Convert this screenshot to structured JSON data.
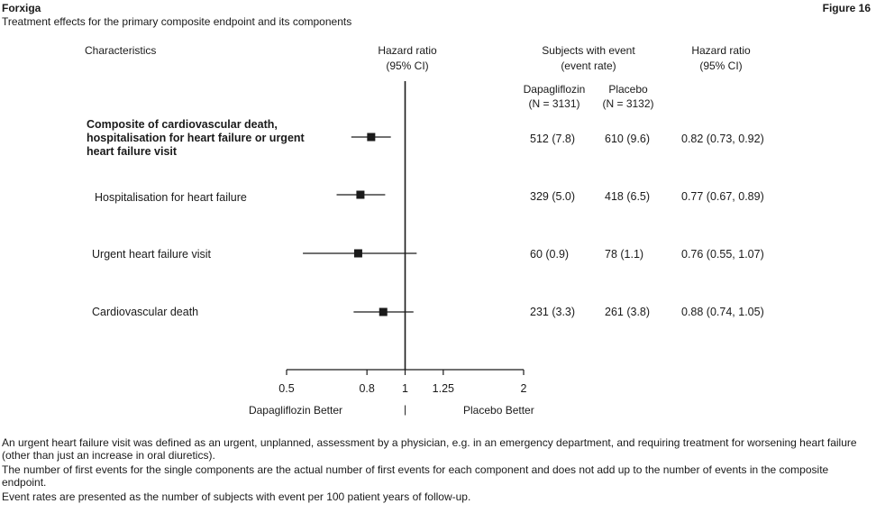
{
  "header": {
    "product": "Forxiga",
    "figure": "Figure 16",
    "subtitle": "Treatment effects for the primary composite endpoint and its components"
  },
  "columns": {
    "characteristics": "Characteristics",
    "hr_plot_title": "Hazard ratio",
    "hr_plot_ci": "(95% CI)",
    "subjects_title": "Subjects with event",
    "subjects_sub": "(event rate)",
    "dapa": "Dapagliflozin",
    "dapa_n": "(N = 3131)",
    "placebo": "Placebo",
    "placebo_n": "(N = 3132)",
    "hr_title": "Hazard ratio",
    "hr_ci": "(95% CI)"
  },
  "chart_data": {
    "type": "forest",
    "x_scale": "log",
    "xlim": [
      0.5,
      2
    ],
    "ticks": [
      0.5,
      0.8,
      1,
      1.25,
      2
    ],
    "tick_labels": [
      "0.5",
      "0.8",
      "1",
      "1.25",
      "2"
    ],
    "reference_line": 1,
    "left_label": "Dapagliflozin Better",
    "right_label": "Placebo Better",
    "separator": "|",
    "rows": [
      {
        "label": "Composite of cardiovascular death, hospitalisation for heart failure or urgent heart failure visit",
        "bold": true,
        "hr": 0.82,
        "lo": 0.73,
        "hi": 0.92,
        "dapa": "512 (7.8)",
        "placebo": "610 (9.6)",
        "hr_text": "0.82 (0.73, 0.92)"
      },
      {
        "label": "Hospitalisation for heart failure",
        "bold": false,
        "hr": 0.77,
        "lo": 0.67,
        "hi": 0.89,
        "dapa": "329 (5.0)",
        "placebo": "418 (6.5)",
        "hr_text": "0.77 (0.67, 0.89)"
      },
      {
        "label": "Urgent heart failure visit",
        "bold": false,
        "hr": 0.76,
        "lo": 0.55,
        "hi": 1.07,
        "dapa": "60 (0.9)",
        "placebo": "78 (1.1)",
        "hr_text": "0.76 (0.55, 1.07)"
      },
      {
        "label": "Cardiovascular death",
        "bold": false,
        "hr": 0.88,
        "lo": 0.74,
        "hi": 1.05,
        "dapa": "231 (3.3)",
        "placebo": "261 (3.8)",
        "hr_text": "0.88 (0.74, 1.05)"
      }
    ]
  },
  "footnotes": [
    "An urgent heart failure visit was defined as an urgent, unplanned, assessment by a physician, e.g. in an emergency department, and requiring treatment for worsening heart failure (other than just an increase in oral diuretics).",
    "The number of first events for the single components are the actual number of first events for each component and does not add up to the number of events in the composite endpoint.",
    "Event rates are presented as the number of subjects with event per 100 patient years of follow-up."
  ]
}
